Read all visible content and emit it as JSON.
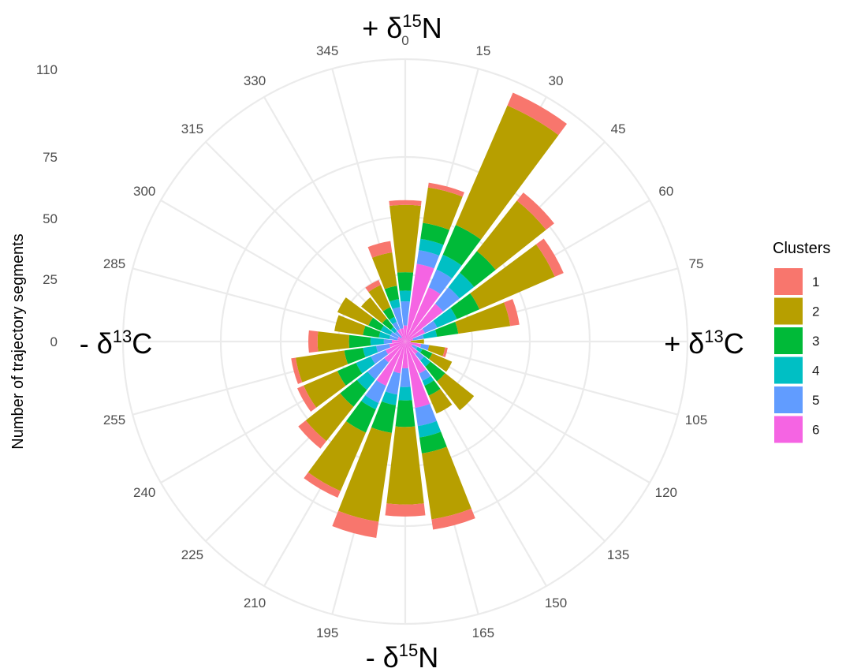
{
  "chart_data": {
    "type": "bar",
    "coordinate_system": "polar",
    "stacked": true,
    "categories": [
      0,
      15,
      30,
      45,
      60,
      75,
      90,
      105,
      120,
      135,
      150,
      165,
      180,
      195,
      210,
      225,
      240,
      255,
      270,
      285,
      300,
      315,
      330,
      345
    ],
    "angle_tick_labels": [
      "0",
      "15",
      "30",
      "45",
      "60",
      "75",
      "105",
      "120",
      "135",
      "150",
      "165",
      "195",
      "210",
      "225",
      "240",
      "255",
      "285",
      "300",
      "315",
      "330",
      "345"
    ],
    "radial_tick_labels": [
      "0",
      "25",
      "50",
      "75",
      "110"
    ],
    "radial_ticks": [
      0,
      25,
      50,
      75,
      110
    ],
    "ylabel": "Number of trajectory segments",
    "direction_labels": {
      "top": {
        "prefix": "+ δ",
        "sup": "15",
        "suffix": "N"
      },
      "bottom": {
        "prefix": "- δ",
        "sup": "15",
        "suffix": "N"
      },
      "right": {
        "prefix": "+ δ",
        "sup": "13",
        "suffix": "C"
      },
      "left": {
        "prefix": "- δ",
        "sup": "13",
        "suffix": "C"
      }
    },
    "legend": {
      "title": "Clusters",
      "position": "right"
    },
    "series": [
      {
        "name": "1",
        "color": "#F8766D",
        "values": [
          2,
          2,
          5,
          4,
          4,
          4,
          0,
          1,
          0,
          0,
          0,
          4,
          5,
          6,
          3,
          4,
          3,
          2,
          4,
          0,
          0,
          0,
          2,
          5
        ]
      },
      {
        "name": "2",
        "color": "#B79F00",
        "values": [
          29,
          15,
          50,
          27,
          35,
          22,
          5,
          6,
          8,
          15,
          8,
          28,
          33,
          38,
          27,
          19,
          16,
          21,
          13,
          11,
          13,
          10,
          9,
          14
        ]
      },
      {
        "name": "3",
        "color": "#00BA38",
        "values": [
          7,
          7,
          14,
          12,
          10,
          8,
          0,
          0,
          4,
          7,
          4,
          7,
          11,
          12,
          11,
          9,
          8,
          7,
          8,
          6,
          5,
          4,
          4,
          5
        ]
      },
      {
        "name": "4",
        "color": "#00BFC4",
        "values": [
          4,
          5,
          7,
          8,
          8,
          5,
          0,
          0,
          2,
          3,
          2,
          5,
          5,
          4,
          3,
          5,
          6,
          5,
          5,
          4,
          4,
          2,
          2,
          3
        ]
      },
      {
        "name": "5",
        "color": "#619CFF",
        "values": [
          9,
          6,
          8,
          8,
          5,
          4,
          0,
          3,
          2,
          3,
          3,
          8,
          7,
          8,
          7,
          8,
          6,
          5,
          3,
          3,
          3,
          3,
          3,
          8
        ]
      },
      {
        "name": "6",
        "color": "#F564E3",
        "values": [
          6,
          30,
          22,
          18,
          8,
          3,
          2,
          6,
          3,
          6,
          13,
          25,
          10,
          12,
          18,
          10,
          8,
          6,
          5,
          3,
          3,
          2,
          5,
          5
        ]
      }
    ]
  }
}
